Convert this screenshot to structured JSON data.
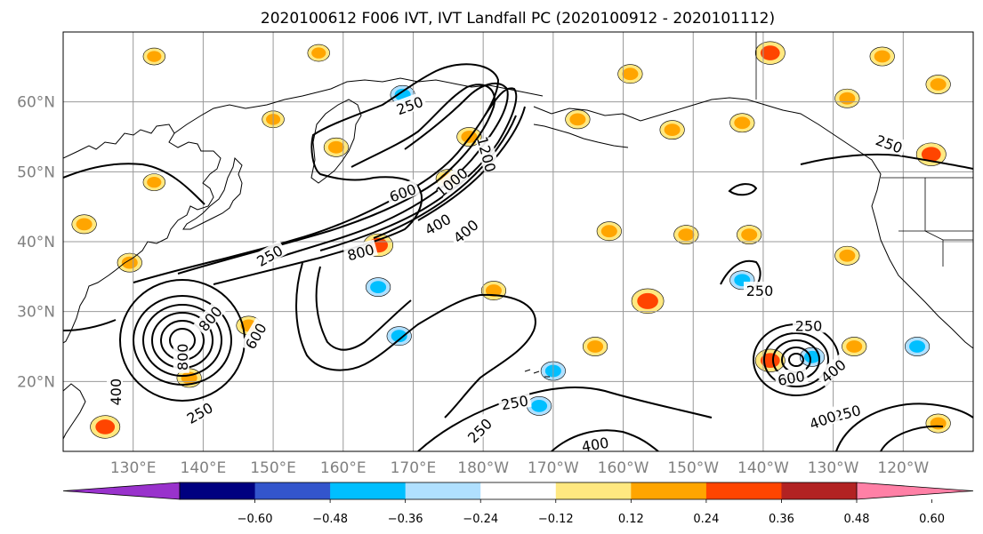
{
  "title": "2020100612 F006 IVT, IVT Landfall PC (2020100912 - 2020101112)",
  "map": {
    "lon_range_east": [
      120,
      250
    ],
    "lat_range": [
      10,
      70
    ],
    "projection": "equirectangular",
    "gridlines": true,
    "lat_labels": [
      {
        "lat": 60,
        "text": "60°N"
      },
      {
        "lat": 50,
        "text": "50°N"
      },
      {
        "lat": 40,
        "text": "40°N"
      },
      {
        "lat": 30,
        "text": "30°N"
      },
      {
        "lat": 20,
        "text": "20°N"
      }
    ],
    "lon_labels": [
      {
        "lon": 130,
        "text": "130°E"
      },
      {
        "lon": 140,
        "text": "140°E"
      },
      {
        "lon": 150,
        "text": "150°E"
      },
      {
        "lon": 160,
        "text": "160°E"
      },
      {
        "lon": 170,
        "text": "170°E"
      },
      {
        "lon": 180,
        "text": "180°W"
      },
      {
        "lon": 190,
        "text": "170°W"
      },
      {
        "lon": 200,
        "text": "160°W"
      },
      {
        "lon": 210,
        "text": "150°W"
      },
      {
        "lon": 220,
        "text": "140°W"
      },
      {
        "lon": 230,
        "text": "130°W"
      },
      {
        "lon": 240,
        "text": "120°W"
      }
    ],
    "contour_labels": [
      {
        "text": "250",
        "lon": 169.5,
        "lat": 59.5,
        "rot": -20
      },
      {
        "text": "1200",
        "lon": 180.5,
        "lat": 52.5,
        "rot": 75
      },
      {
        "text": "1000",
        "lon": 175.5,
        "lat": 48.5,
        "rot": -40
      },
      {
        "text": "600",
        "lon": 168.5,
        "lat": 47,
        "rot": -20
      },
      {
        "text": "400",
        "lon": 173.5,
        "lat": 42.5,
        "rot": -30
      },
      {
        "text": "400",
        "lon": 177.5,
        "lat": 41.5,
        "rot": -40
      },
      {
        "text": "800",
        "lon": 162.5,
        "lat": 38.5,
        "rot": -15
      },
      {
        "text": "250",
        "lon": 149.5,
        "lat": 38,
        "rot": -30
      },
      {
        "text": "250",
        "lon": 219.5,
        "lat": 33,
        "rot": 0
      },
      {
        "text": "800",
        "lon": 141,
        "lat": 29,
        "rot": -50
      },
      {
        "text": "600",
        "lon": 147.5,
        "lat": 26.5,
        "rot": -60
      },
      {
        "text": "800",
        "lon": 137,
        "lat": 23.5,
        "rot": -90
      },
      {
        "text": "400",
        "lon": 127.5,
        "lat": 18.5,
        "rot": -90
      },
      {
        "text": "250",
        "lon": 139.5,
        "lat": 15.5,
        "rot": -30
      },
      {
        "text": "250",
        "lon": 184.5,
        "lat": 17,
        "rot": -10
      },
      {
        "text": "250",
        "lon": 179.5,
        "lat": 13,
        "rot": -45
      },
      {
        "text": "400",
        "lon": 196,
        "lat": 11,
        "rot": -10
      },
      {
        "text": "250",
        "lon": 226.5,
        "lat": 28,
        "rot": 0
      },
      {
        "text": "600",
        "lon": 224,
        "lat": 20.5,
        "rot": -10
      },
      {
        "text": "400",
        "lon": 230,
        "lat": 21.5,
        "rot": -40
      },
      {
        "text": "250",
        "lon": 238,
        "lat": 54,
        "rot": 20
      },
      {
        "text": "250",
        "lon": 232,
        "lat": 15.5,
        "rot": -15
      },
      {
        "text": "400",
        "lon": 228.5,
        "lat": 14.5,
        "rot": -20
      }
    ],
    "ivt_contour_levels": [
      250,
      400,
      600,
      800,
      1000,
      1200
    ],
    "pc_color_blobs": [
      {
        "lon": 203.5,
        "lat": 31.5,
        "value": 0.45
      },
      {
        "lon": 221,
        "lat": 23,
        "value": 0.4
      },
      {
        "lon": 198,
        "lat": 41.5,
        "value": 0.3
      },
      {
        "lon": 209,
        "lat": 41,
        "value": 0.3
      },
      {
        "lon": 218,
        "lat": 41,
        "value": 0.3
      },
      {
        "lon": 165,
        "lat": 39.5,
        "value": 0.4
      },
      {
        "lon": 217,
        "lat": 34.5,
        "value": -0.3
      },
      {
        "lon": 227,
        "lat": 23.5,
        "value": -0.3
      },
      {
        "lon": 233,
        "lat": 25,
        "value": 0.3
      },
      {
        "lon": 242,
        "lat": 25,
        "value": -0.3
      },
      {
        "lon": 193.5,
        "lat": 57.5,
        "value": 0.3
      },
      {
        "lon": 207,
        "lat": 56,
        "value": 0.3
      },
      {
        "lon": 217,
        "lat": 57,
        "value": 0.3
      },
      {
        "lon": 221,
        "lat": 67,
        "value": 0.4
      },
      {
        "lon": 201,
        "lat": 64,
        "value": 0.3
      },
      {
        "lon": 146.5,
        "lat": 28,
        "value": 0.3
      },
      {
        "lon": 123,
        "lat": 42.5,
        "value": 0.3
      },
      {
        "lon": 126,
        "lat": 13.5,
        "value": 0.4
      },
      {
        "lon": 138,
        "lat": 20.5,
        "value": 0.3
      },
      {
        "lon": 165,
        "lat": 33.5,
        "value": -0.3
      },
      {
        "lon": 168,
        "lat": 26.5,
        "value": -0.3
      },
      {
        "lon": 175,
        "lat": 49,
        "value": 0.3
      },
      {
        "lon": 178,
        "lat": 55,
        "value": 0.3
      },
      {
        "lon": 244,
        "lat": 52.5,
        "value": 0.4
      },
      {
        "lon": 245,
        "lat": 62.5,
        "value": 0.3
      },
      {
        "lon": 188,
        "lat": 16.5,
        "value": -0.3
      },
      {
        "lon": 245,
        "lat": 14,
        "value": 0.3
      },
      {
        "lon": 196,
        "lat": 25,
        "value": 0.3
      },
      {
        "lon": 133,
        "lat": 66.5,
        "value": 0.25
      },
      {
        "lon": 156.5,
        "lat": 67,
        "value": 0.25
      },
      {
        "lon": 150,
        "lat": 57.5,
        "value": 0.25
      },
      {
        "lon": 129.5,
        "lat": 37,
        "value": 0.3
      },
      {
        "lon": 133,
        "lat": 48.5,
        "value": 0.25
      },
      {
        "lon": 159,
        "lat": 53.5,
        "value": 0.3
      },
      {
        "lon": 168.5,
        "lat": 61,
        "value": -0.3
      },
      {
        "lon": 181.5,
        "lat": 33,
        "value": 0.3
      },
      {
        "lon": 190,
        "lat": 21.5,
        "value": -0.3
      },
      {
        "lon": 232,
        "lat": 38,
        "value": 0.3
      },
      {
        "lon": 237,
        "lat": 66.5,
        "value": 0.3
      },
      {
        "lon": 232,
        "lat": 60.5,
        "value": 0.3
      }
    ]
  },
  "colorbar": {
    "ticks": [
      "−0.60",
      "−0.48",
      "−0.36",
      "−0.24",
      "−0.12",
      "0.12",
      "0.24",
      "0.36",
      "0.48",
      "0.60"
    ],
    "under_color": "#9932cc",
    "over_color": "#ff80a6",
    "colors": [
      "#000080",
      "#3355cc",
      "#00bfff",
      "#b0e0ff",
      "#ffffff",
      "#ffe880",
      "#ffa500",
      "#ff4500",
      "#b22222"
    ]
  }
}
